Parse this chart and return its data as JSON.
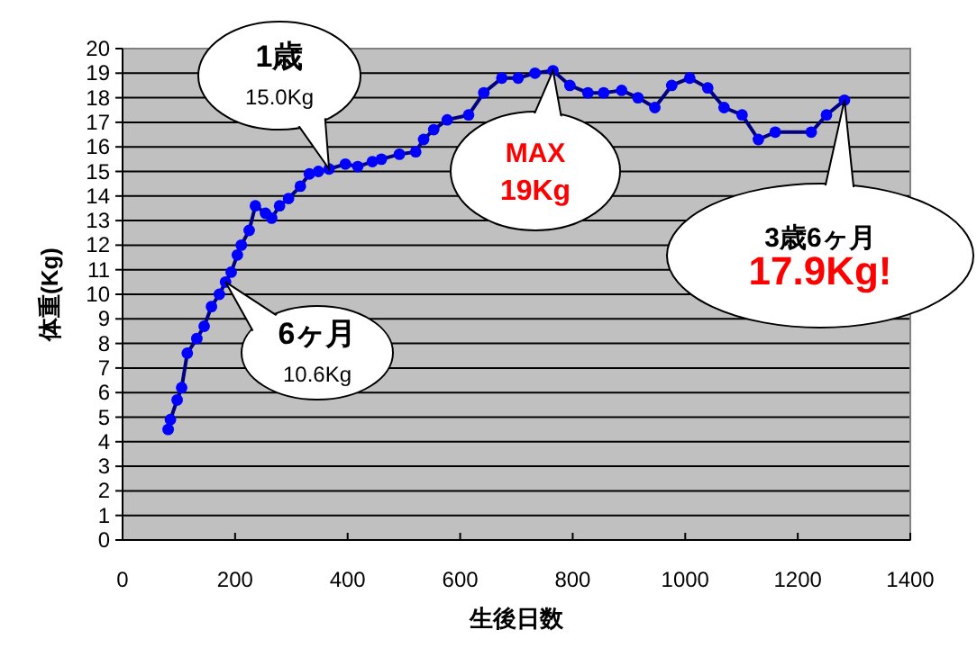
{
  "chart_data": {
    "type": "line",
    "xlabel": "生後日数",
    "ylabel": "体重(Kg)",
    "xlim": [
      0,
      1400
    ],
    "xticks": [
      0,
      200,
      400,
      600,
      800,
      1000,
      1200,
      1400
    ],
    "ylim": [
      0,
      20
    ],
    "yticks": [
      0,
      1,
      2,
      3,
      4,
      5,
      6,
      7,
      8,
      9,
      10,
      11,
      12,
      13,
      14,
      15,
      16,
      17,
      18,
      19,
      20
    ],
    "grid": "y",
    "marker": "circle",
    "line_style": "solid",
    "series": [
      {
        "color": "#0000ff",
        "x": [
          81,
          85,
          97,
          105,
          115,
          132,
          145,
          158,
          172,
          183,
          193,
          204,
          211,
          225,
          236,
          254,
          265,
          279,
          295,
          316,
          332,
          348,
          367,
          396,
          418,
          444,
          460,
          492,
          521,
          535,
          553,
          577,
          615,
          642,
          674,
          703,
          733,
          765,
          795,
          827,
          855,
          887,
          916,
          946,
          976,
          1008,
          1040,
          1069,
          1101,
          1130,
          1160,
          1224,
          1251,
          1283
        ],
        "values": [
          4.5,
          4.9,
          5.7,
          6.2,
          7.6,
          8.2,
          8.7,
          9.5,
          10.0,
          10.5,
          10.9,
          11.6,
          12.0,
          12.6,
          13.6,
          13.3,
          13.1,
          13.6,
          13.9,
          14.4,
          14.9,
          15.0,
          15.1,
          15.3,
          15.2,
          15.4,
          15.5,
          15.7,
          15.8,
          16.3,
          16.7,
          17.1,
          17.3,
          18.2,
          18.8,
          18.8,
          19.0,
          19.1,
          18.5,
          18.2,
          18.2,
          18.3,
          18.0,
          17.6,
          18.5,
          18.8,
          18.4,
          17.6,
          17.3,
          16.3,
          16.6,
          16.6,
          17.3,
          17.9
        ]
      }
    ],
    "annotations": [
      {
        "text": "1歳\n15.0Kg",
        "x": 367,
        "y": 15.1
      },
      {
        "text": "6ヶ月\n10.6Kg",
        "x": 183,
        "y": 10.5
      },
      {
        "text": "MAX\n19Kg",
        "x": 765,
        "y": 19.1
      },
      {
        "text": "3歳6ヶ月\n17.9Kg!",
        "x": 1283,
        "y": 17.9
      }
    ]
  }
}
